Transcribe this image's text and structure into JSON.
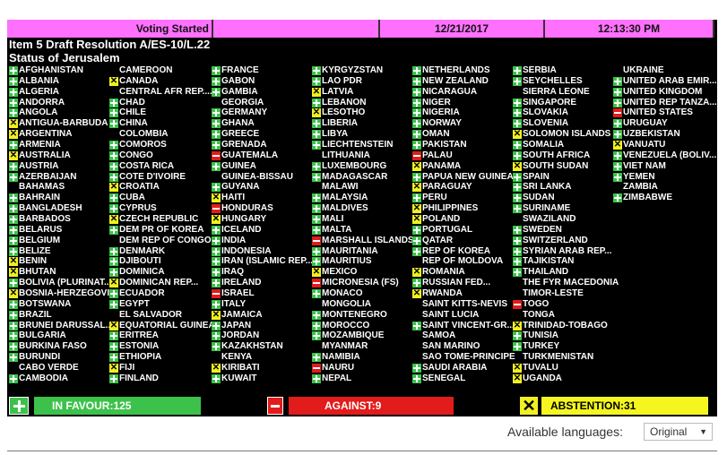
{
  "header": {
    "status": "Voting Started",
    "blank": "",
    "date": "12/21/2017",
    "time": "12:13:30 PM"
  },
  "title": {
    "line1": "Item 5 Draft Resolution A/ES-10/L.22",
    "line2": "Status of Jerusalem"
  },
  "vote_colors": {
    "Y": "#3cc24a",
    "N": "#e21b1b",
    "A": "#f0f020",
    "header": "#ff70ff"
  },
  "columns": [
    [
      [
        "AFGHANISTAN",
        "Y"
      ],
      [
        "ALBANIA",
        "Y"
      ],
      [
        "ALGERIA",
        "Y"
      ],
      [
        "ANDORRA",
        "Y"
      ],
      [
        "ANGOLA",
        "Y"
      ],
      [
        "ANTIGUA-BARBUDA",
        "A"
      ],
      [
        "ARGENTINA",
        "A"
      ],
      [
        "ARMENIA",
        "Y"
      ],
      [
        "AUSTRALIA",
        "A"
      ],
      [
        "AUSTRIA",
        "Y"
      ],
      [
        "AZERBAIJAN",
        "Y"
      ],
      [
        "BAHAMAS",
        ""
      ],
      [
        "BAHRAIN",
        "Y"
      ],
      [
        "BANGLADESH",
        "Y"
      ],
      [
        "BARBADOS",
        "Y"
      ],
      [
        "BELARUS",
        "Y"
      ],
      [
        "BELGIUM",
        "Y"
      ],
      [
        "BELIZE",
        "Y"
      ],
      [
        "BENIN",
        "A"
      ],
      [
        "BHUTAN",
        "A"
      ],
      [
        "BOLIVIA (PLURINAT...",
        "Y"
      ],
      [
        "BOSNIA-HERZEGOVI...",
        "A"
      ],
      [
        "BOTSWANA",
        "Y"
      ],
      [
        "BRAZIL",
        "Y"
      ],
      [
        "BRUNEI DARUSSAL...",
        "Y"
      ],
      [
        "BULGARIA",
        "Y"
      ],
      [
        "BURKINA FASO",
        "Y"
      ],
      [
        "BURUNDI",
        "Y"
      ],
      [
        "CABO VERDE",
        ""
      ],
      [
        "CAMBODIA",
        "Y"
      ]
    ],
    [
      [
        "CAMEROON",
        ""
      ],
      [
        "CANADA",
        "A"
      ],
      [
        "CENTRAL AFR REP....",
        ""
      ],
      [
        "CHAD",
        "Y"
      ],
      [
        "CHILE",
        "Y"
      ],
      [
        "CHINA",
        "Y"
      ],
      [
        "COLOMBIA",
        ""
      ],
      [
        "COMOROS",
        "Y"
      ],
      [
        "CONGO",
        "Y"
      ],
      [
        "COSTA RICA",
        "Y"
      ],
      [
        "COTE D'IVOIRE",
        "Y"
      ],
      [
        "CROATIA",
        "A"
      ],
      [
        "CUBA",
        "Y"
      ],
      [
        "CYPRUS",
        "Y"
      ],
      [
        "CZECH REPUBLIC",
        "A"
      ],
      [
        "DEM PR OF KOREA",
        "Y"
      ],
      [
        "DEM REP OF CONGO",
        ""
      ],
      [
        "DENMARK",
        "Y"
      ],
      [
        "DJIBOUTI",
        "Y"
      ],
      [
        "DOMINICA",
        "Y"
      ],
      [
        "DOMINICAN REP...",
        "A"
      ],
      [
        "ECUADOR",
        "Y"
      ],
      [
        "EGYPT",
        "Y"
      ],
      [
        "EL SALVADOR",
        ""
      ],
      [
        "EQUATORIAL GUINEA",
        "A"
      ],
      [
        "ERITREA",
        "Y"
      ],
      [
        "ESTONIA",
        "Y"
      ],
      [
        "ETHIOPIA",
        "Y"
      ],
      [
        "FIJI",
        "A"
      ],
      [
        "FINLAND",
        "Y"
      ]
    ],
    [
      [
        "FRANCE",
        "Y"
      ],
      [
        "GABON",
        "Y"
      ],
      [
        "GAMBIA",
        "Y"
      ],
      [
        "GEORGIA",
        ""
      ],
      [
        "GERMANY",
        "Y"
      ],
      [
        "GHANA",
        "Y"
      ],
      [
        "GREECE",
        "Y"
      ],
      [
        "GRENADA",
        "Y"
      ],
      [
        "GUATEMALA",
        "N"
      ],
      [
        "GUINEA",
        "Y"
      ],
      [
        "GUINEA-BISSAU",
        ""
      ],
      [
        "GUYANA",
        "Y"
      ],
      [
        "HAITI",
        "A"
      ],
      [
        "HONDURAS",
        "N"
      ],
      [
        "HUNGARY",
        "A"
      ],
      [
        "ICELAND",
        "Y"
      ],
      [
        "INDIA",
        "Y"
      ],
      [
        "INDONESIA",
        "Y"
      ],
      [
        "IRAN (ISLAMIC REP...",
        "Y"
      ],
      [
        "IRAQ",
        "Y"
      ],
      [
        "IRELAND",
        "Y"
      ],
      [
        "ISRAEL",
        "N"
      ],
      [
        "ITALY",
        "Y"
      ],
      [
        "JAMAICA",
        "A"
      ],
      [
        "JAPAN",
        "Y"
      ],
      [
        "JORDAN",
        "Y"
      ],
      [
        "KAZAKHSTAN",
        "Y"
      ],
      [
        "KENYA",
        ""
      ],
      [
        "KIRIBATI",
        "A"
      ],
      [
        "KUWAIT",
        "Y"
      ]
    ],
    [
      [
        "KYRGYZSTAN",
        "Y"
      ],
      [
        "LAO PDR",
        "Y"
      ],
      [
        "LATVIA",
        "A"
      ],
      [
        "LEBANON",
        "Y"
      ],
      [
        "LESOTHO",
        "A"
      ],
      [
        "LIBERIA",
        "Y"
      ],
      [
        "LIBYA",
        "Y"
      ],
      [
        "LIECHTENSTEIN",
        "Y"
      ],
      [
        "LITHUANIA",
        ""
      ],
      [
        "LUXEMBOURG",
        "Y"
      ],
      [
        "MADAGASCAR",
        "Y"
      ],
      [
        "MALAWI",
        ""
      ],
      [
        "MALAYSIA",
        "Y"
      ],
      [
        "MALDIVES",
        "Y"
      ],
      [
        "MALI",
        "Y"
      ],
      [
        "MALTA",
        "Y"
      ],
      [
        "MARSHALL ISLANDS",
        "N"
      ],
      [
        "MAURITANIA",
        "Y"
      ],
      [
        "MAURITIUS",
        "Y"
      ],
      [
        "MEXICO",
        "A"
      ],
      [
        "MICRONESIA (FS)",
        "N"
      ],
      [
        "MONACO",
        "Y"
      ],
      [
        "MONGOLIA",
        ""
      ],
      [
        "MONTENEGRO",
        "Y"
      ],
      [
        "MOROCCO",
        "Y"
      ],
      [
        "MOZAMBIQUE",
        "Y"
      ],
      [
        "MYANMAR",
        ""
      ],
      [
        "NAMIBIA",
        "Y"
      ],
      [
        "NAURU",
        "N"
      ],
      [
        "NEPAL",
        "Y"
      ]
    ],
    [
      [
        "NETHERLANDS",
        "Y"
      ],
      [
        "NEW ZEALAND",
        "Y"
      ],
      [
        "NICARAGUA",
        "Y"
      ],
      [
        "NIGER",
        "Y"
      ],
      [
        "NIGERIA",
        "Y"
      ],
      [
        "NORWAY",
        "Y"
      ],
      [
        "OMAN",
        "Y"
      ],
      [
        "PAKISTAN",
        "Y"
      ],
      [
        "PALAU",
        "N"
      ],
      [
        "PANAMA",
        "A"
      ],
      [
        "PAPUA NEW GUINEA",
        "Y"
      ],
      [
        "PARAGUAY",
        "A"
      ],
      [
        "PERU",
        "Y"
      ],
      [
        "PHILIPPINES",
        "A"
      ],
      [
        "POLAND",
        "A"
      ],
      [
        "PORTUGAL",
        "Y"
      ],
      [
        "QATAR",
        "Y"
      ],
      [
        "REP OF KOREA",
        "Y"
      ],
      [
        "REP OF MOLDOVA",
        ""
      ],
      [
        "ROMANIA",
        "A"
      ],
      [
        "RUSSIAN FED...",
        "Y"
      ],
      [
        "RWANDA",
        "A"
      ],
      [
        "SAINT KITTS-NEVIS",
        ""
      ],
      [
        "SAINT LUCIA",
        ""
      ],
      [
        "SAINT VINCENT-GR...",
        "Y"
      ],
      [
        "SAMOA",
        ""
      ],
      [
        "SAN MARINO",
        ""
      ],
      [
        "SAO TOME-PRINCIPE",
        ""
      ],
      [
        "SAUDI ARABIA",
        "Y"
      ],
      [
        "SENEGAL",
        "Y"
      ]
    ],
    [
      [
        "SERBIA",
        "Y"
      ],
      [
        "SEYCHELLES",
        "Y"
      ],
      [
        "SIERRA LEONE",
        ""
      ],
      [
        "SINGAPORE",
        "Y"
      ],
      [
        "SLOVAKIA",
        "Y"
      ],
      [
        "SLOVENIA",
        "Y"
      ],
      [
        "SOLOMON ISLANDS",
        "A"
      ],
      [
        "SOMALIA",
        "Y"
      ],
      [
        "SOUTH AFRICA",
        "Y"
      ],
      [
        "SOUTH SUDAN",
        "A"
      ],
      [
        "SPAIN",
        "Y"
      ],
      [
        "SRI LANKA",
        "Y"
      ],
      [
        "SUDAN",
        "Y"
      ],
      [
        "SURINAME",
        "Y"
      ],
      [
        "SWAZILAND",
        ""
      ],
      [
        "SWEDEN",
        "Y"
      ],
      [
        "SWITZERLAND",
        "Y"
      ],
      [
        "SYRIAN ARAB REP...",
        "Y"
      ],
      [
        "TAJIKISTAN",
        "Y"
      ],
      [
        "THAILAND",
        "Y"
      ],
      [
        "THE FYR MACEDONIA",
        ""
      ],
      [
        "TIMOR-LESTE",
        ""
      ],
      [
        "TOGO",
        "N"
      ],
      [
        "TONGA",
        ""
      ],
      [
        "TRINIDAD-TOBAGO",
        "A"
      ],
      [
        "TUNISIA",
        "Y"
      ],
      [
        "TURKEY",
        "Y"
      ],
      [
        "TURKMENISTAN",
        ""
      ],
      [
        "TUVALU",
        "A"
      ],
      [
        "UGANDA",
        "A"
      ]
    ],
    [
      [
        "UKRAINE",
        ""
      ],
      [
        "UNITED ARAB EMIR...",
        "Y"
      ],
      [
        "UNITED KINGDOM",
        "Y"
      ],
      [
        "UNITED REP TANZA...",
        "Y"
      ],
      [
        "UNITED STATES",
        "N"
      ],
      [
        "URUGUAY",
        "Y"
      ],
      [
        "UZBEKISTAN",
        "Y"
      ],
      [
        "VANUATU",
        "A"
      ],
      [
        "VENEZUELA (BOLIV...",
        "Y"
      ],
      [
        "VIET NAM",
        "Y"
      ],
      [
        "YEMEN",
        "Y"
      ],
      [
        "ZAMBIA",
        ""
      ],
      [
        "ZIMBABWE",
        "Y"
      ]
    ]
  ],
  "totals": {
    "in_favour": "IN FAVOUR:125",
    "against": "AGAINST:9",
    "abstention": "ABSTENTION:31"
  },
  "languages": {
    "label": "Available languages:",
    "selected": "Original",
    "arrow": "▼"
  }
}
